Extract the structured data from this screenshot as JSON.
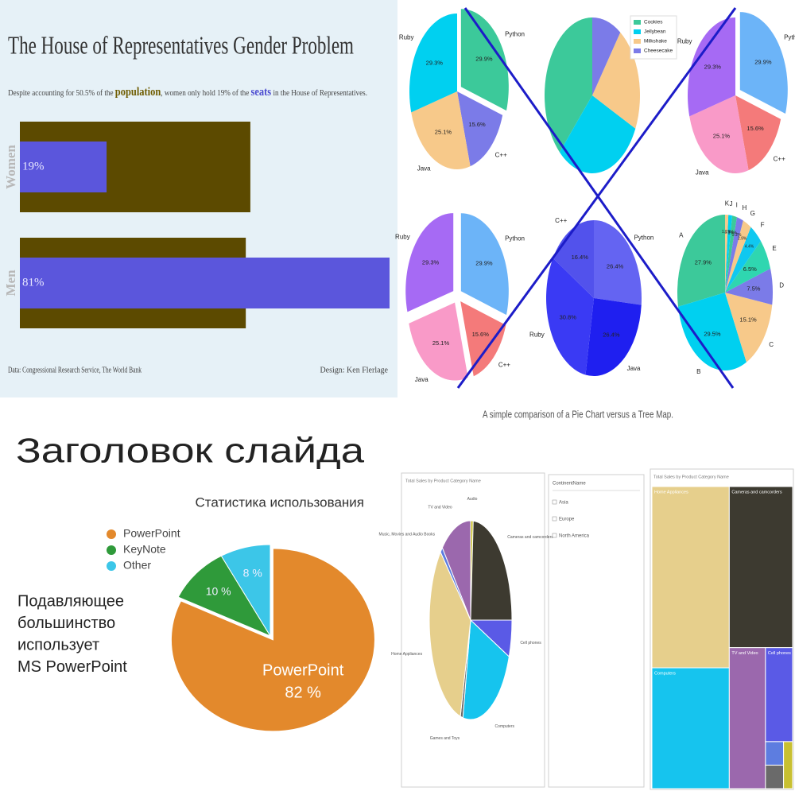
{
  "chart_data": [
    {
      "type": "bar",
      "title": "The House of Representatives Gender Problem",
      "subtitle": [
        {
          "text": "Despite accounting for 50.5% of the "
        },
        {
          "text": "population",
          "color": "#6e5c00"
        },
        {
          "text": ", women only hold 19% of the "
        },
        {
          "text": "seats",
          "color": "#4a4ad0"
        },
        {
          "text": " in the House of Representatives."
        }
      ],
      "categories": [
        "Women",
        "Men"
      ],
      "series": [
        {
          "color": "#5c4a00",
          "values": [
            50.5,
            49.5
          ]
        },
        {
          "color": "#5b56dc",
          "values": [
            19,
            81
          ],
          "value_labels": [
            "19%",
            "81%"
          ]
        }
      ],
      "xlim": [
        0,
        81
      ],
      "background": "#e6f1f7",
      "source": "Data: Congressional Research Service, The World Bank",
      "credit": "Design: Ken Flerlage"
    },
    {
      "type": "pies",
      "caption": "A simple comparison of a Pie Chart versus a Tree Map.",
      "crossed_out": true,
      "cross_color": "#1c1cc8",
      "charts": [
        {
          "categories": [
            "Python",
            "C++",
            "Java",
            "Ruby"
          ],
          "values": [
            29.9,
            15.6,
            25.1,
            29.3
          ],
          "value_labels": [
            "29.9%",
            "15.6%",
            "25.1%",
            "29.3%"
          ],
          "colors": [
            "#3cc99a",
            "#7b7be8",
            "#f7c98a",
            "#00d0f0"
          ]
        },
        {
          "categories": [
            "Cookies",
            "Jellybean",
            "Milkshake",
            "Cheesecake"
          ],
          "values": [
            38,
            30,
            22,
            10
          ],
          "colors": [
            "#3cc99a",
            "#00d0f0",
            "#f7c98a",
            "#7b7be8"
          ],
          "legend": "upper right"
        },
        {
          "categories": [
            "Python",
            "C++",
            "Java",
            "Ruby"
          ],
          "values": [
            29.9,
            15.6,
            25.1,
            29.3
          ],
          "value_labels": [
            "29.9%",
            "15.6%",
            "25.1%",
            "29.3%"
          ],
          "colors": [
            "#6cb4f8",
            "#f47a7a",
            "#f99ac8",
            "#a66af4"
          ]
        },
        {
          "categories": [
            "Python",
            "C++",
            "Java",
            "Ruby"
          ],
          "values": [
            29.9,
            15.6,
            25.1,
            29.3
          ],
          "value_labels": [
            "29.9%",
            "15.6%",
            "25.1%",
            "29.3%"
          ],
          "colors": [
            "#6cb4f8",
            "#f47a7a",
            "#f99ac8",
            "#a66af4"
          ]
        },
        {
          "categories": [
            "Python",
            "Java",
            "Ruby",
            "C++"
          ],
          "values": [
            26.4,
            26.4,
            30.8,
            16.4
          ],
          "value_labels": [
            "26.4%",
            "26.4%",
            "30.8%",
            "16.4%"
          ],
          "colors": [
            "#6464f2",
            "#1f1ff0",
            "#3a3af4",
            "#5252ec"
          ]
        },
        {
          "categories": [
            "A",
            "B",
            "C",
            "D",
            "E",
            "F",
            "G",
            "H",
            "I",
            "J",
            "K"
          ],
          "values": [
            27.9,
            29.5,
            15.1,
            7.5,
            6.5,
            4.4,
            2.9,
            2.2,
            1.6,
            1.3,
            1.1
          ],
          "value_labels": [
            "27.9%",
            "29.5%",
            "15.1%",
            "7.5%",
            "6.5%",
            "4.4%",
            "2.9%",
            "2.2%",
            "1.6%",
            "1.3%",
            "1.1%"
          ],
          "colors": [
            "#3cc99a",
            "#00d0f0",
            "#f7c98a",
            "#7b7be8",
            "#2fd6b0",
            "#10c8f0",
            "#f7c98a",
            "#7b7be8",
            "#3cc99a",
            "#00d0f0",
            "#f7c98a"
          ]
        }
      ]
    },
    {
      "type": "pie",
      "title": "Заголовок слайда",
      "subtitle": "Статистика использования",
      "categories": [
        "PowerPoint",
        "KeyNote",
        "Other"
      ],
      "values": [
        82,
        10,
        8
      ],
      "value_labels": [
        "82 %",
        "10 %",
        "8 %"
      ],
      "colors": [
        "#e3892c",
        "#2f9a3a",
        "#3cc6e8"
      ],
      "legend": "upper left",
      "annotation": [
        "Подавляющее",
        "большинство",
        "использует",
        "MS PowerPoint"
      ]
    },
    {
      "type": "dashboard",
      "pie": {
        "title": "Total Sales by Product Category Name",
        "categories": [
          "Audio",
          "Cameras and camcorders",
          "Cell phones",
          "Computers",
          "Games and Toys",
          "Home Appliances",
          "Music, Movies and Audio Books",
          "TV and Video"
        ],
        "values": [
          1,
          24,
          6,
          22,
          1,
          33,
          1,
          12
        ],
        "colors": [
          "#c8c030",
          "#3d3a30",
          "#5a5ae6",
          "#16c4ee",
          "#6a6a6a",
          "#e6cf8c",
          "#5d7de0",
          "#9b68ad"
        ]
      },
      "slicer": {
        "title": "ContinentName",
        "items": [
          "Asia",
          "Europe",
          "North America"
        ]
      },
      "treemap": {
        "title": "Total Sales by Product Category Name",
        "categories": [
          "Home Appliances",
          "Computers",
          "Cameras and camcorders",
          "TV and Video",
          "Cell phones",
          null,
          null,
          null
        ],
        "values": [
          33,
          22,
          24,
          12,
          6,
          1,
          1,
          1
        ],
        "colors": [
          "#e6cf8c",
          "#16c4ee",
          "#3d3a30",
          "#9b68ad",
          "#5a5ae6",
          "#5d7de0",
          "#6a6a6a",
          "#c8c030"
        ]
      }
    }
  ]
}
